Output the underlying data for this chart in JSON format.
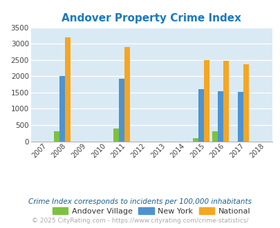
{
  "title": "Andover Property Crime Index",
  "title_color": "#1a7abf",
  "years": [
    2007,
    2008,
    2009,
    2010,
    2011,
    2012,
    2013,
    2014,
    2015,
    2016,
    2017,
    2018
  ],
  "andover": {
    "2008": 300,
    "2011": 400,
    "2015": 100,
    "2016": 310
  },
  "new_york": {
    "2008": 2000,
    "2011": 1925,
    "2015": 1600,
    "2016": 1550,
    "2017": 1510
  },
  "national": {
    "2008": 3200,
    "2011": 2900,
    "2015": 2500,
    "2016": 2470,
    "2017": 2375
  },
  "color_andover": "#7dc142",
  "color_ny": "#4e93d0",
  "color_national": "#f5a623",
  "ylim": [
    0,
    3500
  ],
  "yticks": [
    0,
    500,
    1000,
    1500,
    2000,
    2500,
    3000,
    3500
  ],
  "bg_color": "#daeaf4",
  "bar_width": 0.28,
  "subtitle": "Crime Index corresponds to incidents per 100,000 inhabitants",
  "footer": "© 2025 CityRating.com - https://www.cityrating.com/crime-statistics/",
  "legend_labels": [
    "Andover Village",
    "New York",
    "National"
  ]
}
